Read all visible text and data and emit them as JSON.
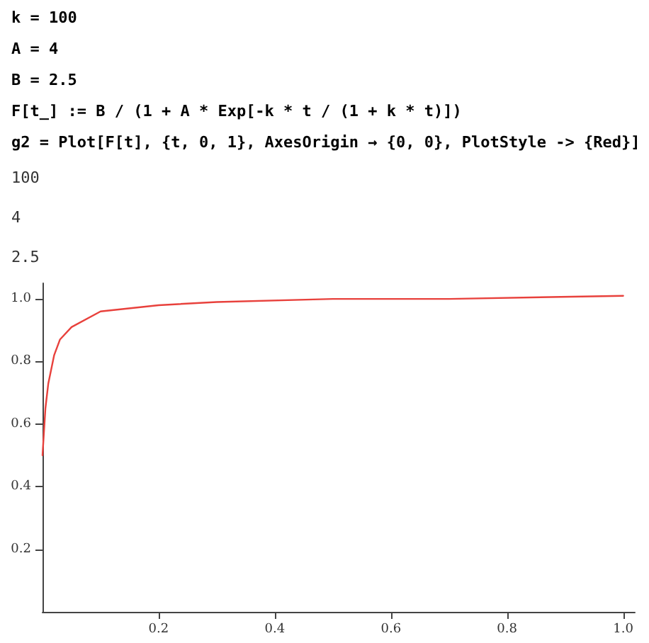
{
  "chart_data": {
    "type": "line",
    "annotations": [
      "k = 100",
      "A = 4",
      "B = 2.5",
      "F[t_] := B / (1 + A * Exp[-k * t / (1 + k * t)])",
      "g2 = Plot[F[t], {t, 0, 1}, AxesOrigin → {0, 0}, PlotStyle -> {Red}]",
      "100",
      "4",
      "2.5"
    ],
    "x": [
      0,
      0.005,
      0.01,
      0.02,
      0.03,
      0.05,
      0.1,
      0.2,
      0.3,
      0.5,
      0.7,
      1
    ],
    "series": [
      {
        "color": "#e8413c",
        "values": [
          0.5,
          0.65,
          0.73,
          0.82,
          0.87,
          0.91,
          0.96,
          0.98,
          0.99,
          1.0,
          1.0,
          1.01
        ]
      }
    ],
    "xlim": [
      0,
      1.02
    ],
    "xticks": [
      0.2,
      0.4,
      0.6,
      0.8,
      {
        "value": 1,
        "label": "1.0"
      }
    ],
    "ylim": [
      0,
      1.05
    ],
    "yticks": [
      0.2,
      0.4,
      0.6,
      0.8,
      {
        "value": 1,
        "label": "1.0"
      }
    ],
    "grid": false,
    "marker": "none",
    "line_style": "solid"
  }
}
